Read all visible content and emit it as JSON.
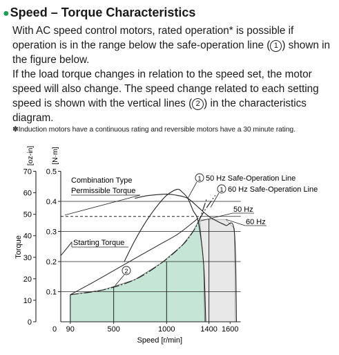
{
  "heading": {
    "bullet": "●",
    "text": "Speed – Torque Characteristics"
  },
  "paragraph1": {
    "part1": "With AC speed control motors, rated operation* is possible if operation is in the range below the safe-operation line (",
    "mark": "1",
    "part2": ") shown in the figure below."
  },
  "paragraph2": {
    "part1": "If the load torque changes in relation to the speed set, the motor speed will also change. The speed change related to each setting speed is shown with the vertical lines (",
    "mark": "2",
    "part2": ") in the characteristics diagram."
  },
  "footnote": "✽Induction motors have a continuous rating and reversible motors have a 30 minute rating.",
  "chart_data": {
    "type": "line",
    "xlabel": "Speed [r/min]",
    "ylabel": "Torque",
    "y_units_oz": "[oz-in]",
    "y_units_nm": "[N·m]",
    "xlim": [
      0,
      1700
    ],
    "ylim_nm": [
      0,
      0.5
    ],
    "ylim_oz": [
      0,
      70
    ],
    "x_ticks": [
      {
        "value": 90,
        "label": "90"
      },
      {
        "value": 500,
        "label": "500"
      },
      {
        "value": 1000,
        "label": "1000"
      },
      {
        "value": 1400,
        "label": "1400"
      },
      {
        "value": 1600,
        "label": "1600"
      }
    ],
    "x_zero_label": "0",
    "y_ticks_nm": [
      {
        "value": 0.1,
        "label": "0.1"
      },
      {
        "value": 0.2,
        "label": "0.2"
      },
      {
        "value": 0.3,
        "label": "0.3"
      },
      {
        "value": 0.4,
        "label": "0.4"
      },
      {
        "value": 0.5,
        "label": "0.5"
      }
    ],
    "y_ticks_oz": [
      {
        "value": 0,
        "label": "0"
      },
      {
        "value": 10,
        "label": "10"
      },
      {
        "value": 20,
        "label": "20"
      },
      {
        "value": 30,
        "label": "30"
      },
      {
        "value": 40,
        "label": "40"
      },
      {
        "value": 50,
        "label": "50"
      },
      {
        "value": 60,
        "label": "60"
      },
      {
        "value": 70,
        "label": "70"
      }
    ],
    "grid_y_nm": [
      0.1,
      0.2,
      0.3,
      0.4
    ],
    "regions": {
      "safe_50hz": {
        "name": "50 Hz",
        "color": "#c5e5d6",
        "points": [
          [
            90,
            0.09
          ],
          [
            400,
            0.106
          ],
          [
            700,
            0.14
          ],
          [
            950,
            0.195
          ],
          [
            1150,
            0.255
          ],
          [
            1250,
            0.3
          ],
          [
            1310,
            0.34
          ],
          [
            1350,
            0.19
          ],
          [
            1360,
            0
          ]
        ]
      },
      "safe_60hz": {
        "name": "60 Hz",
        "color": "#e8e8e8",
        "points": [
          [
            1150,
            0.255
          ],
          [
            1250,
            0.3
          ],
          [
            1310,
            0.34
          ],
          [
            1560,
            0.34
          ],
          [
            1640,
            0.31
          ],
          [
            1650,
            0
          ]
        ]
      }
    },
    "curves": {
      "speed_torque_50hz": [
        [
          600,
          0.2
        ],
        [
          700,
          0.27
        ],
        [
          800,
          0.33
        ],
        [
          900,
          0.38
        ],
        [
          1000,
          0.42
        ],
        [
          1100,
          0.44
        ],
        [
          1150,
          0.43
        ],
        [
          1200,
          0.41
        ],
        [
          1250,
          0.37
        ],
        [
          1300,
          0.33
        ],
        [
          1350,
          0.19
        ],
        [
          1370,
          0
        ]
      ],
      "speed_torque_60hz": [
        [
          700,
          0.41
        ],
        [
          800,
          0.418
        ],
        [
          900,
          0.422
        ],
        [
          1000,
          0.424
        ],
        [
          1100,
          0.42
        ],
        [
          1200,
          0.41
        ],
        [
          1300,
          0.38
        ],
        [
          1400,
          0.35
        ],
        [
          1500,
          0.33
        ],
        [
          1560,
          0.32
        ],
        [
          1640,
          0.3
        ],
        [
          1660,
          0
        ]
      ],
      "safe_line_50hz": [
        [
          90,
          0.09
        ],
        [
          400,
          0.106
        ],
        [
          700,
          0.14
        ],
        [
          950,
          0.195
        ],
        [
          1150,
          0.255
        ],
        [
          1250,
          0.3
        ],
        [
          1310,
          0.34
        ],
        [
          1380,
          0.41
        ]
      ],
      "safe_line_60hz": [
        [
          1310,
          0.34
        ],
        [
          1360,
          0.37
        ],
        [
          1460,
          0.42
        ]
      ],
      "safe_line_low": [
        [
          90,
          0.09
        ],
        [
          300,
          0.13
        ],
        [
          500,
          0.17
        ],
        [
          700,
          0.21
        ],
        [
          900,
          0.25
        ],
        [
          1100,
          0.29
        ],
        [
          1250,
          0.33
        ],
        [
          1300,
          0.345
        ]
      ]
    },
    "vertical_lines_x": [
      90,
      500,
      1000,
      1400
    ],
    "combination_torque_nm": 0.35,
    "starting_torque_start_nm": 0.22,
    "annotations": {
      "combination_line1": "Combination Type",
      "combination_line2": "Permissible Torque",
      "starting_torque": "Starting Torque",
      "safe_50hz_mark": "1",
      "safe_50hz_text": "50 Hz Safe-Operation Line",
      "safe_60hz_mark": "1",
      "safe_60hz_text": "60 Hz Safe-Operation Line",
      "label_50hz": "50 Hz",
      "label_60hz": "60 Hz",
      "vertical_mark": "2"
    },
    "grid": true
  }
}
